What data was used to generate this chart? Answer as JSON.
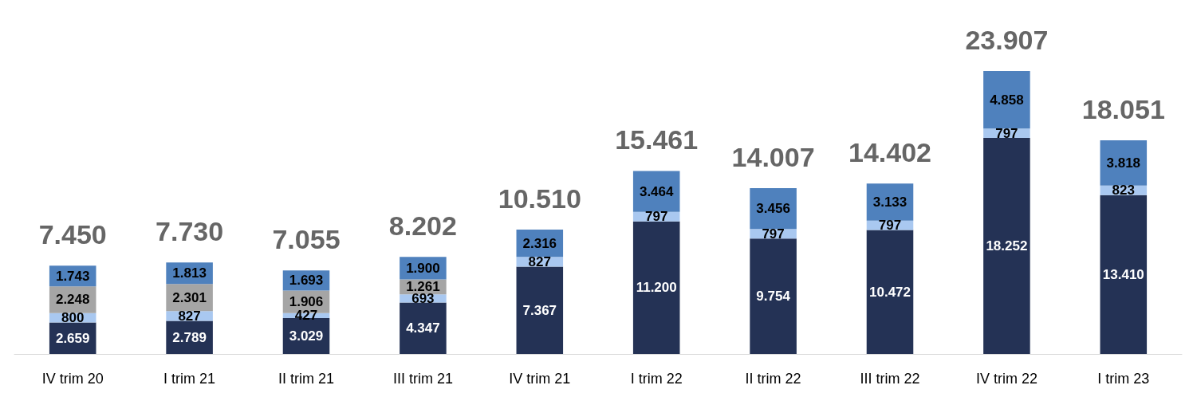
{
  "chart_data": {
    "type": "bar",
    "stacked": true,
    "categories": [
      "IV trim 20",
      "I trim 21",
      "II trim 21",
      "III trim 21",
      "IV trim 21",
      "I trim 22",
      "II trim 22",
      "III trim 22",
      "IV trim 22",
      "I trim 23"
    ],
    "series": [
      {
        "color": "#243255",
        "values": [
          2659,
          2789,
          3029,
          4347,
          7367,
          11200,
          9754,
          10472,
          18252,
          13410
        ],
        "value_labels": [
          "2.659",
          "2.789",
          "3.029",
          "4.347",
          "7.367",
          "11.200",
          "9.754",
          "10.472",
          "18.252",
          "13.410"
        ]
      },
      {
        "color": "#a9c8f0",
        "values": [
          800,
          827,
          427,
          693,
          827,
          797,
          797,
          797,
          797,
          823
        ],
        "value_labels": [
          "800",
          "827",
          "427",
          "693",
          "827",
          "797",
          "797",
          "797",
          "797",
          "823"
        ]
      },
      {
        "color": "#a5a5a5",
        "values": [
          2248,
          2301,
          1906,
          1261,
          null,
          null,
          null,
          null,
          null,
          null
        ],
        "value_labels": [
          "2.248",
          "2.301",
          "1.906",
          "1.261",
          null,
          null,
          null,
          null,
          null,
          null
        ]
      },
      {
        "color": "#4f81bd",
        "values": [
          1743,
          1813,
          1693,
          1900,
          2316,
          3464,
          3456,
          3133,
          4858,
          3818
        ],
        "value_labels": [
          "1.743",
          "1.813",
          "1.693",
          "1.900",
          "2.316",
          "3.464",
          "3.456",
          "3.133",
          "4.858",
          "3.818"
        ]
      }
    ],
    "totals": [
      "7.450",
      "7.730",
      "7.055",
      "8.202",
      "10.510",
      "15.461",
      "14.007",
      "14.402",
      "23.907",
      "18.051"
    ]
  }
}
